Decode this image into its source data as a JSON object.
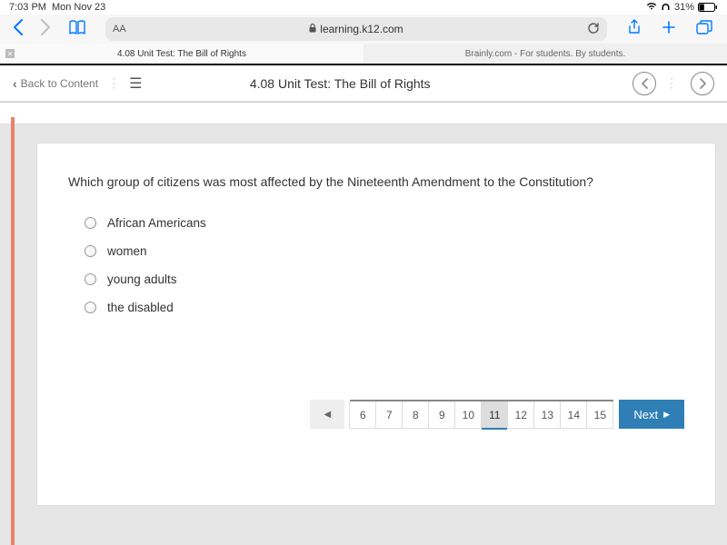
{
  "status": {
    "time": "7:03 PM",
    "date": "Mon Nov 23",
    "battery_pct": "31%"
  },
  "safari": {
    "aa_label": "AA",
    "url_display": "learning.k12.com",
    "tabs": [
      {
        "title": "4.08 Unit Test: The Bill of Rights",
        "active": true
      },
      {
        "title": "Brainly.com - For students. By students.",
        "active": false
      }
    ]
  },
  "app": {
    "back_label": "Back to Content",
    "title": "4.08 Unit Test: The Bill of Rights"
  },
  "question": {
    "prompt": "Which group of citizens was most affected by the Nineteenth Amendment to the Constitution?",
    "options": [
      "African Americans",
      "women",
      "young adults",
      "the disabled"
    ]
  },
  "pager": {
    "pages": [
      "6",
      "7",
      "8",
      "9",
      "10",
      "11",
      "12",
      "13",
      "14",
      "15"
    ],
    "current": "11",
    "next_label": "Next"
  },
  "colors": {
    "accent_orange": "#e9826a",
    "accent_blue": "#2f7fb6",
    "ios_blue": "#007aff",
    "gray_bg": "#e6e6e6"
  }
}
